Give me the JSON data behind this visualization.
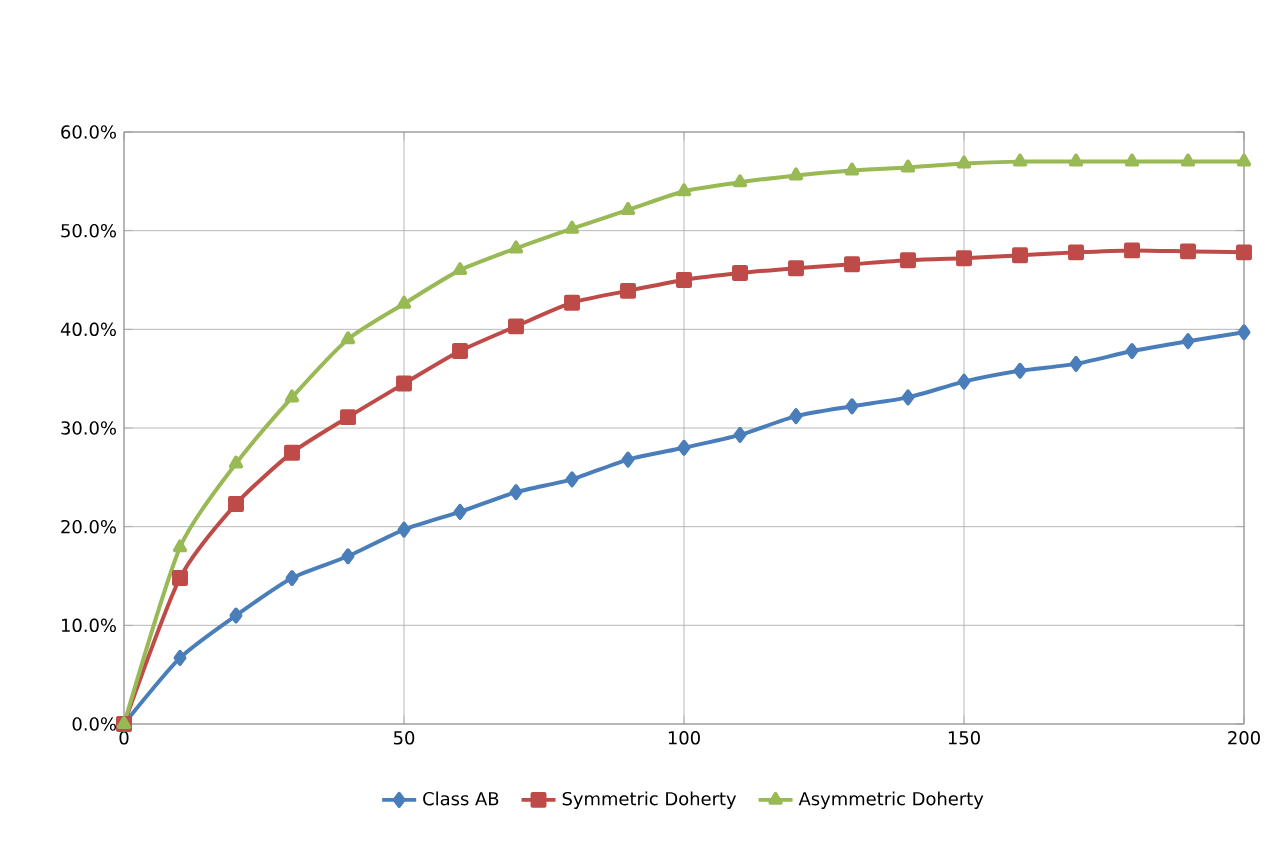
{
  "chart_data": {
    "type": "line",
    "x": [
      0,
      10,
      20,
      30,
      40,
      50,
      60,
      70,
      80,
      90,
      100,
      110,
      120,
      130,
      140,
      150,
      160,
      170,
      180,
      190,
      200
    ],
    "series": [
      {
        "name": "Class AB",
        "color": "#4a7ebb",
        "marker": "diamond",
        "values": [
          0,
          6.7,
          11,
          14.8,
          17,
          19.7,
          21.5,
          23.5,
          24.8,
          26.8,
          28,
          29.3,
          31.2,
          32.2,
          33.1,
          34.7,
          35.8,
          36.5,
          37.8,
          38.8,
          39.7
        ]
      },
      {
        "name": "Symmetric Doherty",
        "color": "#be4b48",
        "marker": "square",
        "values": [
          0,
          14.8,
          22.3,
          27.5,
          31.1,
          34.5,
          37.8,
          40.3,
          42.7,
          43.9,
          45,
          45.7,
          46.2,
          46.6,
          47,
          47.2,
          47.5,
          47.8,
          48,
          47.9,
          47.8
        ]
      },
      {
        "name": "Asymmetric Doherty",
        "color": "#98b954",
        "marker": "triangle",
        "values": [
          0,
          17.9,
          26.4,
          33.1,
          39,
          42.6,
          46,
          48.2,
          50.2,
          52.1,
          54,
          54.9,
          55.6,
          56.1,
          56.4,
          56.8,
          57,
          57,
          57,
          57,
          57
        ]
      }
    ],
    "xlim": [
      0,
      200
    ],
    "xticks": [
      0,
      50,
      100,
      150,
      200
    ],
    "ylim": [
      0,
      60
    ],
    "yticks": [
      {
        "value": 0,
        "label": "0.0%"
      },
      {
        "value": 10,
        "label": "10.0%"
      },
      {
        "value": 20,
        "label": "20.0%"
      },
      {
        "value": 30,
        "label": "30.0%"
      },
      {
        "value": 40,
        "label": "40.0%"
      },
      {
        "value": 50,
        "label": "50.0%"
      },
      {
        "value": 60,
        "label": "60.0%"
      }
    ],
    "grid": true,
    "legend": "bottom"
  }
}
